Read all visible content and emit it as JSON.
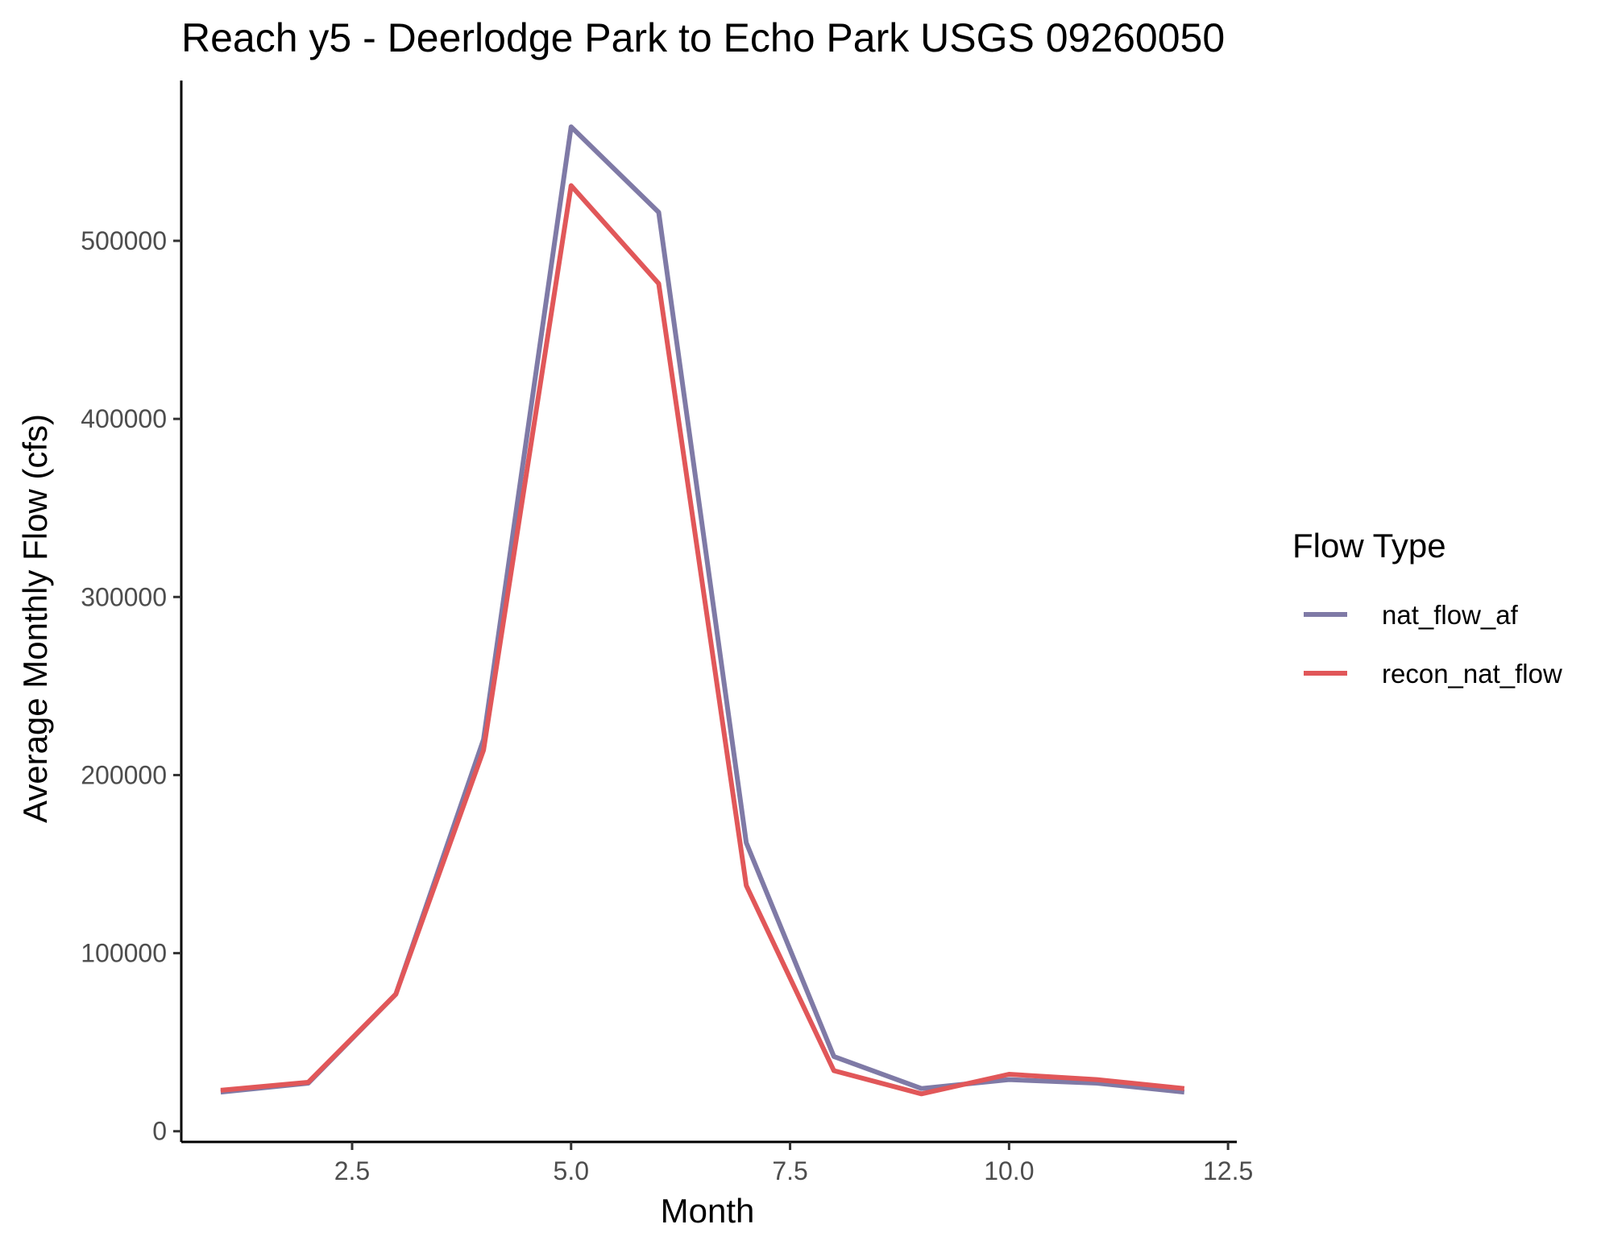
{
  "chart_data": {
    "type": "line",
    "title": "Reach y5 - Deerlodge Park to Echo Park USGS 09260050",
    "xlabel": "Month",
    "ylabel": "Average Monthly Flow (cfs)",
    "xlim": [
      0.55,
      12.6
    ],
    "ylim": [
      -6000,
      590000
    ],
    "x_ticks": [
      2.5,
      5.0,
      7.5,
      10.0,
      12.5
    ],
    "x_tick_labels": [
      "2.5",
      "5.0",
      "7.5",
      "10.0",
      "12.5"
    ],
    "y_ticks": [
      0,
      100000,
      200000,
      300000,
      400000,
      500000
    ],
    "y_tick_labels": [
      "0",
      "100000",
      "200000",
      "300000",
      "400000",
      "500000"
    ],
    "grid": false,
    "legend": {
      "title": "Flow Type",
      "position": "right"
    },
    "x": [
      1,
      2,
      3,
      4,
      5,
      6,
      7,
      8,
      9,
      10,
      11,
      12
    ],
    "series": [
      {
        "name": "nat_flow_af",
        "color": "#7f7aa6",
        "values": [
          22000,
          27000,
          77000,
          220000,
          564000,
          516000,
          162000,
          42000,
          24000,
          29000,
          27000,
          22000
        ]
      },
      {
        "name": "recon_nat_flow",
        "color": "#e15759",
        "values": [
          23000,
          27500,
          77000,
          214000,
          531000,
          476000,
          138000,
          34000,
          21000,
          32000,
          29000,
          24000
        ]
      }
    ]
  }
}
